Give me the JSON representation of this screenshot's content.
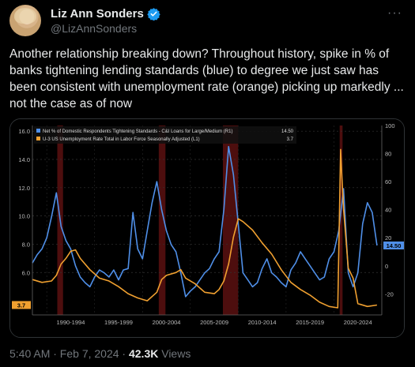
{
  "author": {
    "name": "Liz Ann Sonders",
    "handle": "@LizAnnSonders",
    "verified_color": "#1d9bf0"
  },
  "more_label": "···",
  "tweet": {
    "text": "Another relationship breaking down? Throughout history, spike in % of banks tightening lending standards (blue) to degree we just saw has been consistent with unemployment rate (orange) picking up markedly ... not the case as of now"
  },
  "footer": {
    "time": "5:40 AM · Feb 7, 2024 · ",
    "views_count": "42.3K",
    "views_label": " Views"
  },
  "chart_data": {
    "type": "line",
    "legend": [
      {
        "label": "Net % of Domestic Respondents Tightening Standards - C&I Loans for Large/Medium (R1)",
        "value": "14.50",
        "color": "#4f8fe8"
      },
      {
        "label": "U-3 US Unemployment Rate Total in Labor Force Seasonally Adjusted (L1)",
        "value": "3.7",
        "color": "#f0a030"
      }
    ],
    "x_range": [
      1988,
      2024.5
    ],
    "x_ticks": [
      "1990-1994",
      "1995-1999",
      "2000-2004",
      "2005-2009",
      "2010-2014",
      "2015-2019",
      "2020-2024"
    ],
    "x_tick_positions": [
      1992,
      1997,
      2002,
      2007,
      2012,
      2017,
      2022
    ],
    "left_axis": {
      "range": [
        3.0,
        16.4
      ],
      "ticks": [
        "16.0",
        "14.0",
        "12.0",
        "10.0",
        "8.0",
        "6.0"
      ],
      "tick_values": [
        16,
        14,
        12,
        10,
        8,
        6
      ],
      "current_label": "3.7"
    },
    "right_axis": {
      "range": [
        -35,
        100
      ],
      "ticks": [
        "100",
        "80",
        "60",
        "40",
        "20",
        "0",
        "-20"
      ],
      "tick_values": [
        100,
        80,
        60,
        40,
        20,
        0,
        -20
      ],
      "current_label": "14.50"
    },
    "recessions": [
      [
        1990.6,
        1991.2
      ],
      [
        2001.2,
        2001.9
      ],
      [
        2007.9,
        2009.5
      ],
      [
        2020.1,
        2020.4
      ]
    ],
    "series": [
      {
        "name": "Net % of Domestic Respondents Tightening Standards - C&I Loans for Large/Medium",
        "axis": "right",
        "color": "#4f8fe8",
        "x": [
          1988.0,
          1988.5,
          1989.0,
          1989.5,
          1990.0,
          1990.5,
          1991.0,
          1991.5,
          1992.0,
          1992.5,
          1993.0,
          1993.5,
          1994.0,
          1994.5,
          1995.0,
          1995.5,
          1996.0,
          1996.5,
          1997.0,
          1997.5,
          1998.0,
          1998.5,
          1999.0,
          1999.5,
          2000.0,
          2000.5,
          2001.0,
          2001.5,
          2002.0,
          2002.5,
          2003.0,
          2003.5,
          2004.0,
          2004.5,
          2005.0,
          2005.5,
          2006.0,
          2006.5,
          2007.0,
          2007.5,
          2008.0,
          2008.5,
          2009.0,
          2009.5,
          2010.0,
          2010.5,
          2011.0,
          2011.5,
          2012.0,
          2012.5,
          2013.0,
          2013.5,
          2014.0,
          2014.5,
          2015.0,
          2015.5,
          2016.0,
          2016.5,
          2017.0,
          2017.5,
          2018.0,
          2018.5,
          2019.0,
          2019.5,
          2020.0,
          2020.5,
          2021.0,
          2021.5,
          2022.0,
          2022.5,
          2023.0,
          2023.5,
          2024.0
        ],
        "values": [
          2,
          8,
          12,
          20,
          35,
          52,
          28,
          18,
          12,
          0,
          -8,
          -12,
          -15,
          -8,
          -3,
          -5,
          -8,
          -3,
          -10,
          -3,
          -2,
          38,
          12,
          5,
          25,
          45,
          60,
          40,
          25,
          15,
          10,
          -5,
          -22,
          -18,
          -15,
          -10,
          -5,
          -2,
          5,
          10,
          40,
          85,
          65,
          30,
          -5,
          -10,
          -15,
          -12,
          -2,
          5,
          -5,
          -8,
          -12,
          -15,
          -3,
          2,
          10,
          5,
          0,
          -5,
          -10,
          -8,
          5,
          10,
          25,
          55,
          -5,
          -15,
          -5,
          30,
          45,
          38,
          14.5
        ]
      },
      {
        "name": "U-3 US Unemployment Rate Total in Labor Force Seasonally Adjusted",
        "axis": "left",
        "color": "#f0a030",
        "x": [
          1988.0,
          1989.0,
          1990.0,
          1990.5,
          1991.0,
          1991.5,
          1992.0,
          1992.5,
          1993.0,
          1994.0,
          1995.0,
          1996.0,
          1997.0,
          1998.0,
          1999.0,
          2000.0,
          2001.0,
          2001.5,
          2002.0,
          2003.0,
          2003.5,
          2004.0,
          2005.0,
          2006.0,
          2007.0,
          2007.5,
          2008.0,
          2008.5,
          2009.0,
          2009.5,
          2010.0,
          2011.0,
          2012.0,
          2013.0,
          2014.0,
          2015.0,
          2016.0,
          2017.0,
          2018.0,
          2019.0,
          2019.9,
          2020.2,
          2020.3,
          2020.5,
          2021.0,
          2021.5,
          2022.0,
          2023.0,
          2024.0
        ],
        "values": [
          5.5,
          5.3,
          5.4,
          5.8,
          6.6,
          7.0,
          7.5,
          7.6,
          7.0,
          6.2,
          5.6,
          5.4,
          5.0,
          4.5,
          4.2,
          4.0,
          4.6,
          5.5,
          5.8,
          6.0,
          6.2,
          5.6,
          5.2,
          4.6,
          4.5,
          4.8,
          5.4,
          6.6,
          8.5,
          9.8,
          9.6,
          9.0,
          8.1,
          7.3,
          6.2,
          5.3,
          4.8,
          4.4,
          3.9,
          3.6,
          3.5,
          14.7,
          13.2,
          10.5,
          6.3,
          5.6,
          3.8,
          3.6,
          3.7
        ]
      }
    ]
  }
}
